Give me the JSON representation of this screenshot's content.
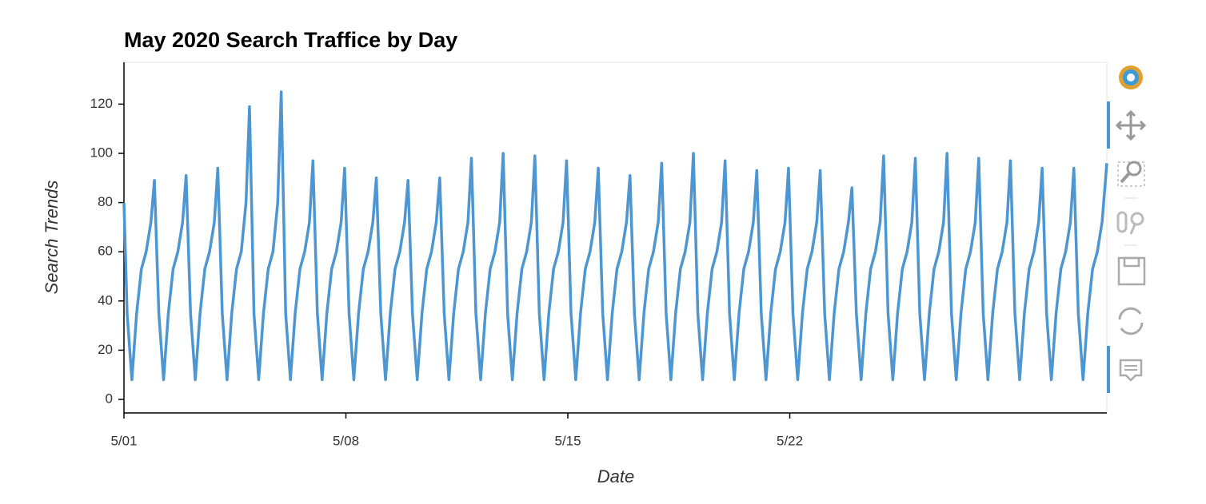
{
  "chart_data": {
    "type": "line",
    "title": "May 2020 Search Traffice by Day",
    "x_label": "Date",
    "y_label": "Search Trends",
    "color": "#4d96d1",
    "xlim": [
      0,
      31
    ],
    "xticks": [
      {
        "value": 0,
        "label": "5/01"
      },
      {
        "value": 7,
        "label": "5/08"
      },
      {
        "value": 14,
        "label": "5/15"
      },
      {
        "value": 21,
        "label": "5/22"
      }
    ],
    "ylim": [
      -5.5,
      137
    ],
    "yticks": [
      0,
      20,
      40,
      60,
      80,
      100,
      120
    ],
    "x": [
      0,
      0.1,
      0.25,
      0.4,
      0.55,
      0.7,
      0.85,
      0.96,
      1.1,
      1.25,
      1.4,
      1.55,
      1.7,
      1.85,
      1.96,
      2.1,
      2.25,
      2.4,
      2.55,
      2.7,
      2.85,
      2.96,
      3.1,
      3.25,
      3.4,
      3.55,
      3.7,
      3.85,
      3.96,
      4.1,
      4.25,
      4.4,
      4.55,
      4.7,
      4.85,
      4.96,
      5.1,
      5.25,
      5.4,
      5.55,
      5.7,
      5.85,
      5.96,
      6.1,
      6.25,
      6.4,
      6.55,
      6.7,
      6.85,
      6.96,
      7.1,
      7.25,
      7.4,
      7.55,
      7.7,
      7.85,
      7.96,
      8.1,
      8.25,
      8.4,
      8.55,
      8.7,
      8.85,
      8.96,
      9.1,
      9.25,
      9.4,
      9.55,
      9.7,
      9.85,
      9.96,
      10.1,
      10.25,
      10.4,
      10.55,
      10.7,
      10.85,
      10.96,
      11.1,
      11.25,
      11.4,
      11.55,
      11.7,
      11.85,
      11.96,
      12.1,
      12.25,
      12.4,
      12.55,
      12.7,
      12.85,
      12.96,
      13.1,
      13.25,
      13.4,
      13.55,
      13.7,
      13.85,
      13.96,
      14.1,
      14.25,
      14.4,
      14.55,
      14.7,
      14.85,
      14.96,
      15.1,
      15.25,
      15.4,
      15.55,
      15.7,
      15.85,
      15.96,
      16.1,
      16.25,
      16.4,
      16.55,
      16.7,
      16.85,
      16.96,
      17.1,
      17.25,
      17.4,
      17.55,
      17.7,
      17.85,
      17.96,
      18.1,
      18.25,
      18.4,
      18.55,
      18.7,
      18.85,
      18.96,
      19.1,
      19.25,
      19.4,
      19.55,
      19.7,
      19.85,
      19.96,
      20.1,
      20.25,
      20.4,
      20.55,
      20.7,
      20.85,
      20.96,
      21.1,
      21.25,
      21.4,
      21.55,
      21.7,
      21.85,
      21.96,
      22.1,
      22.25,
      22.4,
      22.55,
      22.7,
      22.85,
      22.96,
      23.1,
      23.25,
      23.4,
      23.55,
      23.7,
      23.85,
      23.96,
      24.1,
      24.25,
      24.4,
      24.55,
      24.7,
      24.85,
      24.96,
      25.1,
      25.25,
      25.4,
      25.55,
      25.7,
      25.85,
      25.96,
      26.1,
      26.25,
      26.4,
      26.55,
      26.7,
      26.85,
      26.96,
      27.1,
      27.25,
      27.4,
      27.55,
      27.7,
      27.85,
      27.96,
      28.1,
      28.25,
      28.4,
      28.55,
      28.7,
      28.85,
      28.96,
      29.1,
      29.25,
      29.4,
      29.55,
      29.7,
      29.85,
      29.96,
      30.1,
      30.25,
      30.4,
      30.55,
      30.7,
      30.85,
      31
    ],
    "values": [
      80,
      35,
      8,
      35,
      53,
      60,
      72,
      89,
      35,
      8,
      35,
      53,
      60,
      72,
      91,
      35,
      8,
      35,
      53,
      60,
      72,
      94,
      35,
      8,
      35,
      53,
      60,
      80,
      119,
      35,
      8,
      35,
      53,
      60,
      80,
      125,
      35,
      8,
      35,
      53,
      60,
      72,
      97,
      35,
      8,
      35,
      53,
      60,
      72,
      94,
      35,
      8,
      35,
      53,
      60,
      72,
      90,
      35,
      8,
      35,
      53,
      60,
      72,
      89,
      35,
      8,
      35,
      53,
      60,
      72,
      90,
      35,
      8,
      35,
      53,
      60,
      72,
      98,
      35,
      8,
      35,
      53,
      60,
      72,
      100,
      35,
      8,
      35,
      53,
      60,
      72,
      99,
      35,
      8,
      35,
      53,
      60,
      72,
      97,
      35,
      8,
      35,
      53,
      60,
      72,
      94,
      35,
      8,
      35,
      53,
      60,
      72,
      91,
      35,
      8,
      35,
      53,
      60,
      72,
      96,
      35,
      8,
      35,
      53,
      60,
      72,
      100,
      35,
      8,
      35,
      53,
      60,
      72,
      97,
      35,
      8,
      35,
      53,
      60,
      72,
      93,
      35,
      8,
      35,
      53,
      60,
      72,
      94,
      35,
      8,
      35,
      53,
      60,
      72,
      93,
      35,
      8,
      35,
      53,
      60,
      72,
      86,
      35,
      8,
      35,
      53,
      60,
      72,
      99,
      35,
      8,
      35,
      53,
      60,
      72,
      98,
      35,
      8,
      35,
      53,
      60,
      72,
      100,
      35,
      8,
      35,
      53,
      60,
      72,
      98,
      35,
      8,
      35,
      53,
      60,
      72,
      97,
      35,
      8,
      35,
      53,
      60,
      72,
      94,
      35,
      8,
      35,
      53,
      60,
      72,
      94,
      35,
      8,
      35,
      53,
      60,
      72,
      96
    ]
  }
}
